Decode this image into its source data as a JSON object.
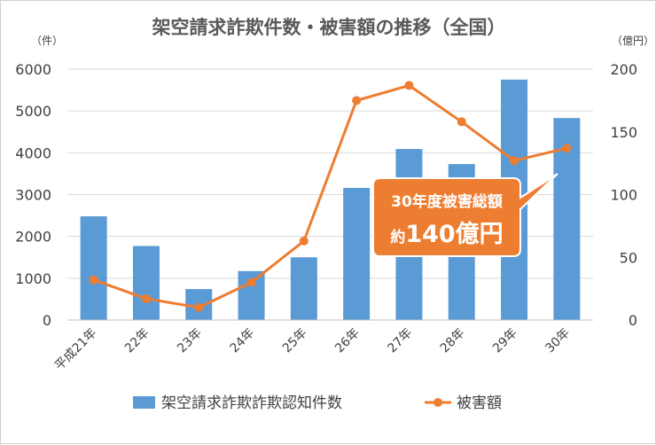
{
  "chart_data": {
    "type": "bar+line",
    "title": "架空請求詐欺件数・被害額の推移（全国）",
    "categories": [
      "平成21年",
      "22年",
      "23年",
      "24年",
      "25年",
      "26年",
      "27年",
      "28年",
      "29年",
      "30年"
    ],
    "series": [
      {
        "name": "架空請求詐欺詐欺認知件数",
        "type": "bar",
        "axis": "left",
        "color": "#5b9bd5",
        "values": [
          2480,
          1770,
          740,
          1170,
          1500,
          3160,
          4090,
          3730,
          5750,
          4830
        ]
      },
      {
        "name": "被害額",
        "type": "line",
        "axis": "right",
        "color": "#ed7d31",
        "values": [
          32,
          17,
          10,
          30,
          63,
          175,
          187,
          158,
          127,
          137
        ]
      }
    ],
    "y_left": {
      "unit": "（件）",
      "range": [
        0,
        6000
      ],
      "ticks": [
        "0",
        "1000",
        "2000",
        "3000",
        "4000",
        "5000",
        "6000"
      ]
    },
    "y_right": {
      "unit": "（億円）",
      "range": [
        0,
        200
      ],
      "ticks": [
        "0",
        "50",
        "100",
        "150",
        "200"
      ]
    },
    "grid": true,
    "legend": "bottom",
    "callout": {
      "line1": "30年度被害総額",
      "prefix": "約",
      "amount": "140億円",
      "color": "#ed7d31"
    }
  }
}
